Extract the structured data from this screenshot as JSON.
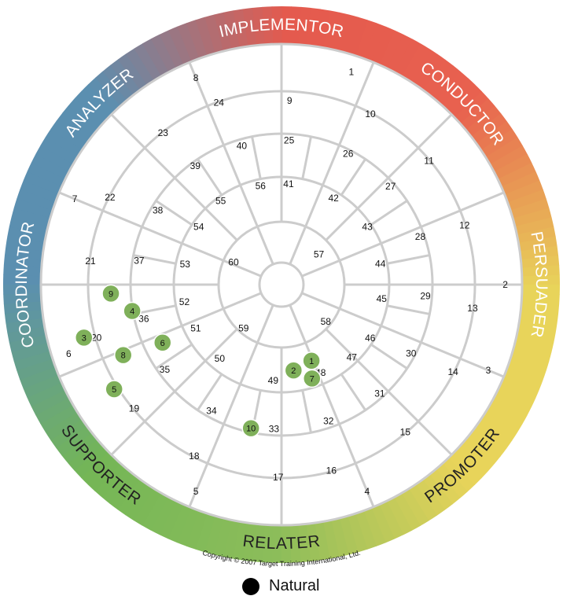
{
  "chart_data": {
    "type": "polar-wheel",
    "styles": [
      {
        "name": "IMPLEMENTOR",
        "angle": 0
      },
      {
        "name": "CONDUCTOR",
        "angle": 45
      },
      {
        "name": "PERSUADER",
        "angle": 90
      },
      {
        "name": "PROMOTER",
        "angle": 135
      },
      {
        "name": "RELATER",
        "angle": 180
      },
      {
        "name": "SUPPORTER",
        "angle": 225
      },
      {
        "name": "COORDINATOR",
        "angle": 270
      },
      {
        "name": "ANALYZER",
        "angle": 315
      }
    ],
    "gradient_colors": [
      "#e45a4e",
      "#e8614f",
      "#e8d45a",
      "#e8d45a",
      "#8cbd5a",
      "#74b656",
      "#5b8fb0",
      "#5b8fb0"
    ],
    "cells": [
      {
        "n": "1",
        "a": 18.2,
        "r": 0.93
      },
      {
        "n": "2",
        "a": 90,
        "r": 0.93
      },
      {
        "n": "3",
        "a": 112.5,
        "r": 0.93
      },
      {
        "n": "4",
        "a": 157.5,
        "r": 0.93
      },
      {
        "n": "5",
        "a": 202.5,
        "r": 0.93
      },
      {
        "n": "6",
        "a": 252,
        "r": 0.93
      },
      {
        "n": "7",
        "a": 292.5,
        "r": 0.93
      },
      {
        "n": "8",
        "a": 337.5,
        "r": 0.93
      },
      {
        "n": "9",
        "a": 2.5,
        "r": 0.765
      },
      {
        "n": "10",
        "a": 27.5,
        "r": 0.8
      },
      {
        "n": "11",
        "a": 50,
        "r": 0.8
      },
      {
        "n": "12",
        "a": 72,
        "r": 0.8
      },
      {
        "n": "13",
        "a": 97,
        "r": 0.8
      },
      {
        "n": "14",
        "a": 117,
        "r": 0.8
      },
      {
        "n": "15",
        "a": 140,
        "r": 0.8
      },
      {
        "n": "16",
        "a": 165,
        "r": 0.8
      },
      {
        "n": "17",
        "a": 181,
        "r": 0.8
      },
      {
        "n": "18",
        "a": 207,
        "r": 0.8
      },
      {
        "n": "19",
        "a": 230,
        "r": 0.8
      },
      {
        "n": "20",
        "a": 254,
        "r": 0.8
      },
      {
        "n": "21",
        "a": 277,
        "r": 0.8
      },
      {
        "n": "22",
        "a": 297,
        "r": 0.8
      },
      {
        "n": "23",
        "a": 322,
        "r": 0.8
      },
      {
        "n": "24",
        "a": 341,
        "r": 0.8
      },
      {
        "n": "25",
        "a": 3,
        "r": 0.6
      },
      {
        "n": "26",
        "a": 27,
        "r": 0.61
      },
      {
        "n": "27",
        "a": 48,
        "r": 0.61
      },
      {
        "n": "28",
        "a": 71,
        "r": 0.61
      },
      {
        "n": "29",
        "a": 94.5,
        "r": 0.6
      },
      {
        "n": "30",
        "a": 118,
        "r": 0.61
      },
      {
        "n": "31",
        "a": 138,
        "r": 0.61
      },
      {
        "n": "32",
        "a": 161,
        "r": 0.6
      },
      {
        "n": "33",
        "a": 183,
        "r": 0.6
      },
      {
        "n": "34",
        "a": 209,
        "r": 0.6
      },
      {
        "n": "35",
        "a": 234,
        "r": 0.6
      },
      {
        "n": "36",
        "a": 256,
        "r": 0.59
      },
      {
        "n": "37",
        "a": 279.5,
        "r": 0.6
      },
      {
        "n": "38",
        "a": 301,
        "r": 0.6
      },
      {
        "n": "39",
        "a": 324,
        "r": 0.61
      },
      {
        "n": "40",
        "a": 344,
        "r": 0.6
      },
      {
        "n": "41",
        "a": 4,
        "r": 0.42
      },
      {
        "n": "42",
        "a": 31,
        "r": 0.42
      },
      {
        "n": "43",
        "a": 56,
        "r": 0.43
      },
      {
        "n": "44",
        "a": 78,
        "r": 0.42
      },
      {
        "n": "45",
        "a": 98,
        "r": 0.42
      },
      {
        "n": "46",
        "a": 121,
        "r": 0.43
      },
      {
        "n": "47",
        "a": 136,
        "r": 0.42
      },
      {
        "n": "48",
        "a": 156,
        "r": 0.4
      },
      {
        "n": "49",
        "a": 185,
        "r": 0.4
      },
      {
        "n": "50",
        "a": 220,
        "r": 0.4
      },
      {
        "n": "51",
        "a": 243,
        "r": 0.4
      },
      {
        "n": "52",
        "a": 260,
        "r": 0.41
      },
      {
        "n": "53",
        "a": 282,
        "r": 0.41
      },
      {
        "n": "54",
        "a": 305,
        "r": 0.42
      },
      {
        "n": "55",
        "a": 324,
        "r": 0.43
      },
      {
        "n": "56",
        "a": 348,
        "r": 0.42
      },
      {
        "n": "57",
        "a": 51,
        "r": 0.2
      },
      {
        "n": "58",
        "a": 130,
        "r": 0.24
      },
      {
        "n": "59",
        "a": 221,
        "r": 0.24
      },
      {
        "n": "60",
        "a": 295,
        "r": 0.22
      }
    ],
    "points": [
      {
        "label": "1",
        "a": 158.5,
        "r": 0.34
      },
      {
        "label": "2",
        "a": 172,
        "r": 0.36
      },
      {
        "label": "3",
        "a": 255,
        "r": 0.85
      },
      {
        "label": "4",
        "a": 260,
        "r": 0.63
      },
      {
        "label": "5",
        "a": 238,
        "r": 0.82
      },
      {
        "label": "6",
        "a": 244,
        "r": 0.55
      },
      {
        "label": "7",
        "a": 162,
        "r": 0.41
      },
      {
        "label": "8",
        "a": 246,
        "r": 0.72
      },
      {
        "label": "9",
        "a": 267,
        "r": 0.71
      },
      {
        "label": "10",
        "a": 192,
        "r": 0.61
      }
    ],
    "legend": {
      "label": "Natural"
    },
    "copyright": "Copyright © 2007 Target Training International, Ltd."
  }
}
